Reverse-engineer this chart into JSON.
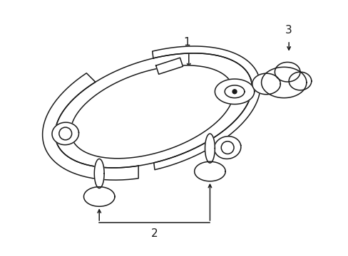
{
  "background_color": "#ffffff",
  "line_color": "#1a1a1a",
  "fig_width": 4.89,
  "fig_height": 3.6,
  "dpi": 100,
  "label1": "1",
  "label2": "2",
  "label3": "3"
}
